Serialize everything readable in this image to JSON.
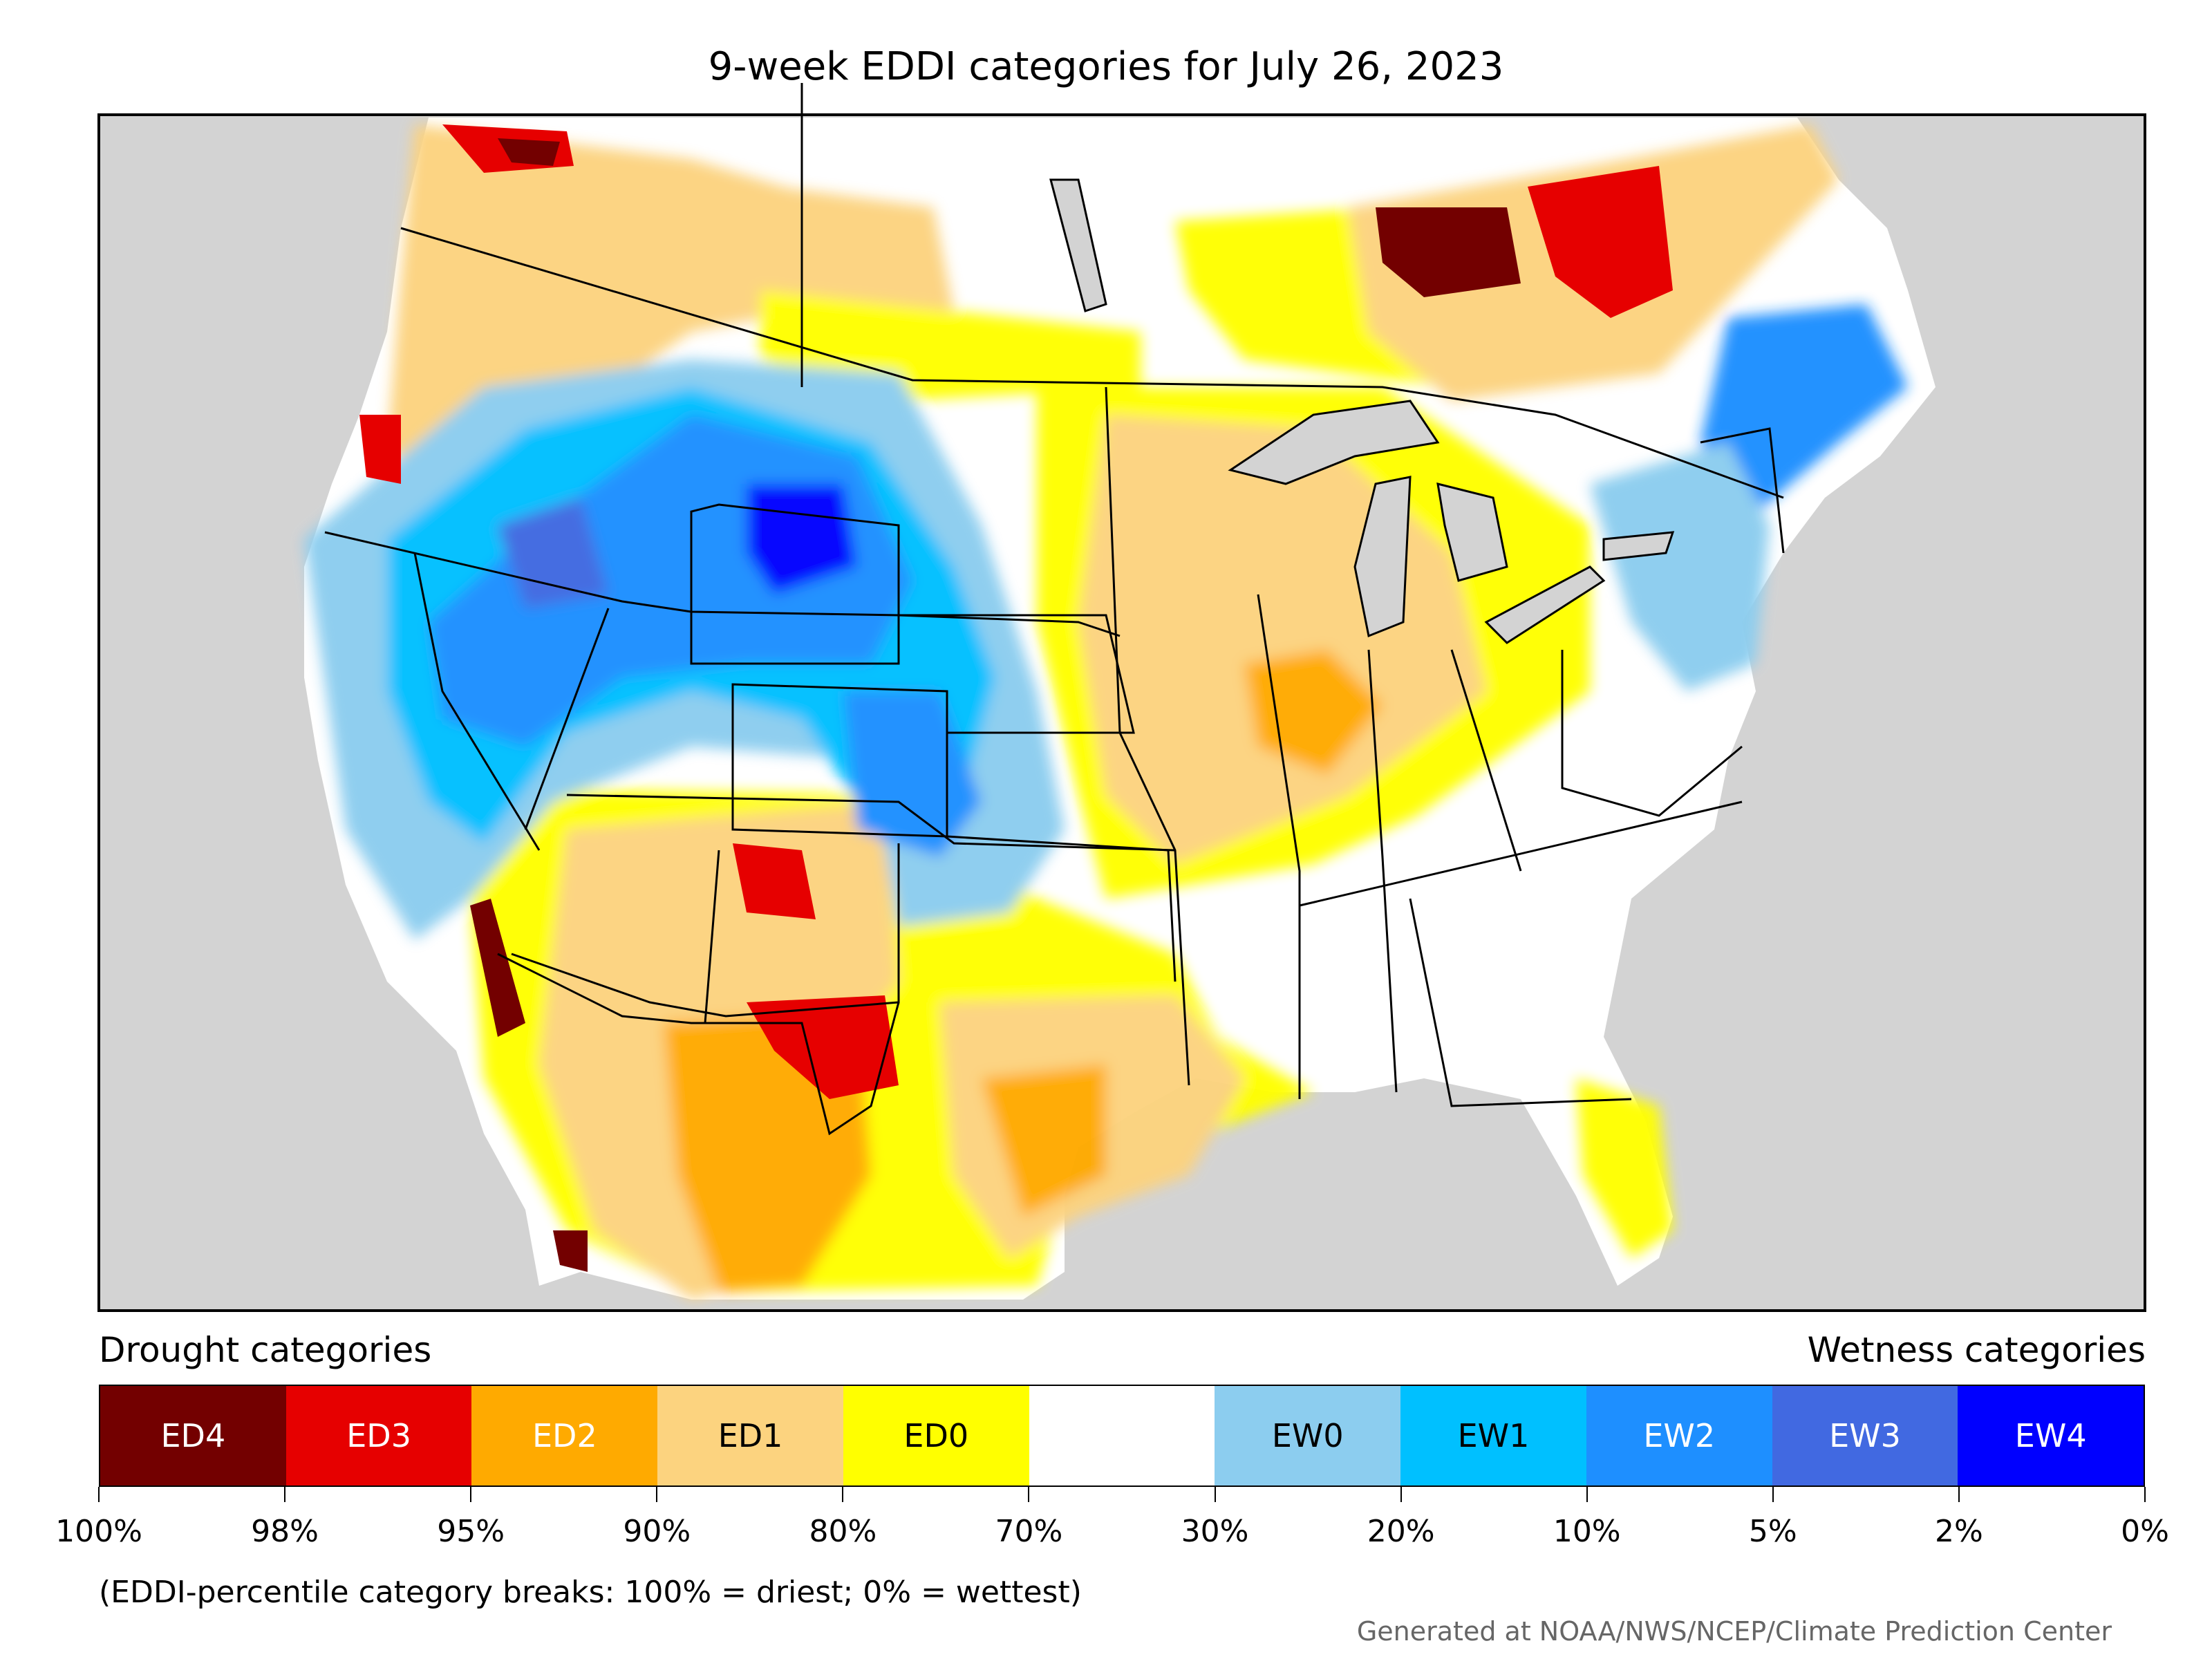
{
  "title": "9-week EDDI categories for July 26, 2023",
  "legend": {
    "drought_label": "Drought categories",
    "wetness_label": "Wetness categories",
    "categories": [
      {
        "label": "ED4",
        "color": "#730000",
        "text_color": "#ffffff"
      },
      {
        "label": "ED3",
        "color": "#e60000",
        "text_color": "#ffffff"
      },
      {
        "label": "ED2",
        "color": "#ffaa00",
        "text_color": "#ffffff"
      },
      {
        "label": "ED1",
        "color": "#fcd37f",
        "text_color": "#000000"
      },
      {
        "label": "ED0",
        "color": "#ffff00",
        "text_color": "#000000"
      },
      {
        "label": "",
        "color": "#ffffff",
        "text_color": "#000000"
      },
      {
        "label": "EW0",
        "color": "#8ccdef",
        "text_color": "#000000"
      },
      {
        "label": "EW1",
        "color": "#00c0ff",
        "text_color": "#000000"
      },
      {
        "label": "EW2",
        "color": "#1e8fff",
        "text_color": "#ffffff"
      },
      {
        "label": "EW3",
        "color": "#4169e1",
        "text_color": "#ffffff"
      },
      {
        "label": "EW4",
        "color": "#0000ff",
        "text_color": "#ffffff"
      }
    ],
    "breaks": [
      "100%",
      "98%",
      "95%",
      "90%",
      "80%",
      "70%",
      "30%",
      "20%",
      "10%",
      "5%",
      "2%",
      "0%"
    ]
  },
  "note": "(EDDI-percentile category breaks: 100% = driest; 0% = wettest)",
  "credit": "Generated at NOAA/NWS/NCEP/Climate Prediction Center",
  "map": {
    "ocean_color": "#d3d3d3",
    "border_color": "#000000",
    "regions": [
      {
        "name": "pacific-northwest-coast",
        "category": "ED3"
      },
      {
        "name": "great-basin-wet",
        "category": "EW2"
      },
      {
        "name": "wyoming-wet",
        "category": "EW4"
      },
      {
        "name": "colorado-wet",
        "category": "EW2"
      },
      {
        "name": "southwest-dry",
        "category": "ED2"
      },
      {
        "name": "new-mexico-texas-dry",
        "category": "ED3"
      },
      {
        "name": "texas-dry",
        "category": "ED1"
      },
      {
        "name": "midwest-dry",
        "category": "ED1"
      },
      {
        "name": "ontario-dry",
        "category": "ED4"
      },
      {
        "name": "new-england-wet",
        "category": "EW2"
      },
      {
        "name": "southeast-normal",
        "category": ""
      }
    ]
  }
}
